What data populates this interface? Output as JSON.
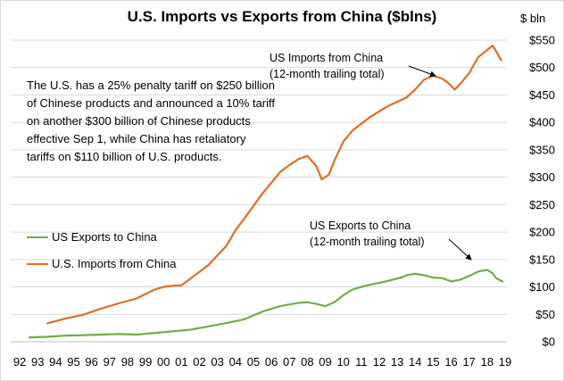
{
  "chart_data": {
    "type": "line",
    "title": "U.S. Imports vs Exports from China ($blns)",
    "ylabel": "$ bln",
    "ylim": [
      0,
      550
    ],
    "yticks": [
      "$0",
      "$50",
      "$100",
      "$150",
      "$200",
      "$250",
      "$300",
      "$350",
      "$400",
      "$450",
      "$500",
      "$550"
    ],
    "xticks": [
      "92",
      "93",
      "94",
      "95",
      "96",
      "97",
      "98",
      "99",
      "00",
      "01",
      "02",
      "03",
      "04",
      "05",
      "06",
      "07",
      "08",
      "09",
      "10",
      "11",
      "12",
      "13",
      "14",
      "15",
      "16",
      "17",
      "18",
      "19"
    ],
    "grid": "horizontal",
    "legend_position": "middle-left",
    "annotation": "The U.S. has a 25% penalty tariff on $250 billion of Chinese products and announced a 10% tariff on another $300 billion of Chinese products effective Sep 1, while China has retaliatory tariffs on $110 billion of U.S. products.",
    "series": [
      {
        "name": "US Exports to China",
        "label_line1": "US Exports to China",
        "label_line2": "(12-month trailing total)",
        "color": "#70ad47",
        "points": [
          [
            93.0,
            8
          ],
          [
            94.0,
            9
          ],
          [
            95.0,
            11
          ],
          [
            96.0,
            12
          ],
          [
            97.0,
            13
          ],
          [
            98.0,
            14
          ],
          [
            99.0,
            13
          ],
          [
            100.0,
            16
          ],
          [
            101.0,
            19
          ],
          [
            102.0,
            22
          ],
          [
            103.0,
            28
          ],
          [
            104.0,
            34
          ],
          [
            105.0,
            41
          ],
          [
            106.0,
            55
          ],
          [
            107.0,
            65
          ],
          [
            108.0,
            71
          ],
          [
            108.5,
            72
          ],
          [
            109.0,
            69
          ],
          [
            109.5,
            65
          ],
          [
            110.0,
            72
          ],
          [
            110.5,
            85
          ],
          [
            111.0,
            95
          ],
          [
            111.5,
            100
          ],
          [
            112.0,
            104
          ],
          [
            113.0,
            111
          ],
          [
            113.8,
            118
          ],
          [
            114.0,
            121
          ],
          [
            114.5,
            124
          ],
          [
            115.0,
            121
          ],
          [
            115.5,
            117
          ],
          [
            116.0,
            116
          ],
          [
            116.5,
            110
          ],
          [
            117.0,
            113
          ],
          [
            117.5,
            120
          ],
          [
            118.0,
            128
          ],
          [
            118.5,
            131
          ],
          [
            118.8,
            125
          ],
          [
            119.0,
            116
          ],
          [
            119.4,
            109
          ]
        ]
      },
      {
        "name": "U.S. Imports from China",
        "label_line1": "US Imports  from China",
        "label_line2": "(12-month  trailing total)",
        "color": "#e46c22",
        "points": [
          [
            94.0,
            33
          ],
          [
            95.0,
            42
          ],
          [
            96.0,
            49
          ],
          [
            97.0,
            60
          ],
          [
            98.0,
            70
          ],
          [
            99.0,
            79
          ],
          [
            100.0,
            95
          ],
          [
            100.5,
            100
          ],
          [
            101.0,
            102
          ],
          [
            101.5,
            103
          ],
          [
            102.0,
            115
          ],
          [
            103.0,
            140
          ],
          [
            104.0,
            175
          ],
          [
            104.5,
            203
          ],
          [
            105.0,
            225
          ],
          [
            106.0,
            270
          ],
          [
            107.0,
            310
          ],
          [
            107.5,
            322
          ],
          [
            108.0,
            333
          ],
          [
            108.5,
            339
          ],
          [
            109.0,
            320
          ],
          [
            109.3,
            296
          ],
          [
            109.7,
            305
          ],
          [
            110.0,
            330
          ],
          [
            110.5,
            365
          ],
          [
            111.0,
            385
          ],
          [
            112.0,
            410
          ],
          [
            113.0,
            430
          ],
          [
            114.0,
            445
          ],
          [
            114.5,
            460
          ],
          [
            115.0,
            478
          ],
          [
            115.5,
            485
          ],
          [
            116.0,
            480
          ],
          [
            116.3,
            473
          ],
          [
            116.7,
            460
          ],
          [
            117.0,
            470
          ],
          [
            117.5,
            490
          ],
          [
            118.0,
            519
          ],
          [
            118.5,
            532
          ],
          [
            118.8,
            540
          ],
          [
            119.0,
            530
          ],
          [
            119.3,
            512
          ]
        ]
      }
    ]
  }
}
